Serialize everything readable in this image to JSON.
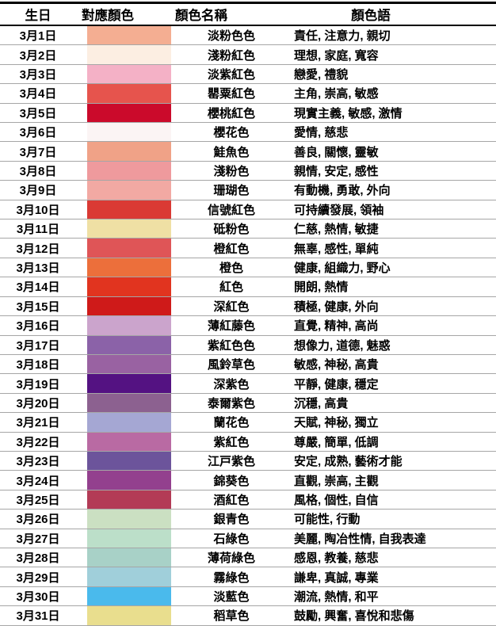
{
  "table": {
    "headers": [
      "生日",
      "對應顏色",
      "顏色名稱",
      "顏色語"
    ],
    "rows": [
      {
        "date": "3月1日",
        "swatch": "#F4AE92",
        "name": "淡粉色色",
        "meaning": "責任, 注意力, 親切"
      },
      {
        "date": "3月2日",
        "swatch": "#FCEEE2",
        "name": "淺粉紅色",
        "meaning": "理想, 家庭, 寬容"
      },
      {
        "date": "3月3日",
        "swatch": "#F4B1C6",
        "name": "淡紫紅色",
        "meaning": "戀愛, 禮貌"
      },
      {
        "date": "3月4日",
        "swatch": "#E6544D",
        "name": "罌粟紅色",
        "meaning": "主角, 崇高, 敏感"
      },
      {
        "date": "3月5日",
        "swatch": "#CB0A2B",
        "name": "櫻桃紅色",
        "meaning": "現實主義, 敏感, 激情"
      },
      {
        "date": "3月6日",
        "swatch": "#FBF4F4",
        "name": "櫻花色",
        "meaning": "愛情, 慈悲"
      },
      {
        "date": "3月7日",
        "swatch": "#F0A287",
        "name": "鮭魚色",
        "meaning": "善良, 關懷, 靈敏"
      },
      {
        "date": "3月8日",
        "swatch": "#EF9A9D",
        "name": "淺粉色",
        "meaning": "親情, 安定, 感性"
      },
      {
        "date": "3月9日",
        "swatch": "#F2A9A3",
        "name": "珊瑚色",
        "meaning": "有動機, 勇敢, 外向"
      },
      {
        "date": "3月10日",
        "swatch": "#DA3A34",
        "name": "信號紅色",
        "meaning": "可持續發展, 領袖"
      },
      {
        "date": "3月11日",
        "swatch": "#EFE0A4",
        "name": "砥粉色",
        "meaning": "仁慈, 熱情, 敏捷"
      },
      {
        "date": "3月12日",
        "swatch": "#DF5557",
        "name": "橙紅色",
        "meaning": "無辜, 感性, 單純"
      },
      {
        "date": "3月13日",
        "swatch": "#EC6F3B",
        "name": "橙色",
        "meaning": "健康, 組織力, 野心"
      },
      {
        "date": "3月14日",
        "swatch": "#E1341F",
        "name": "紅色",
        "meaning": "開朗, 熱情"
      },
      {
        "date": "3月15日",
        "swatch": "#CF1A19",
        "name": "深紅色",
        "meaning": "積極, 健康, 外向"
      },
      {
        "date": "3月16日",
        "swatch": "#CBA4CC",
        "name": "薄紅藤色",
        "meaning": "直覺, 精神, 高尚"
      },
      {
        "date": "3月17日",
        "swatch": "#8B62A8",
        "name": "紫紅色色",
        "meaning": "想像力, 道德, 魅惑"
      },
      {
        "date": "3月18日",
        "swatch": "#9962A2",
        "name": "風鈴草色",
        "meaning": "敏感, 神秘, 高貴"
      },
      {
        "date": "3月19日",
        "swatch": "#541282",
        "name": "深紫色",
        "meaning": "平靜, 健康, 穩定"
      },
      {
        "date": "3月20日",
        "swatch": "#8C6190",
        "name": "泰爾紫色",
        "meaning": "沉穩, 高貴"
      },
      {
        "date": "3月21日",
        "swatch": "#A5A7D3",
        "name": "蘭花色",
        "meaning": "天賦, 神秘, 獨立"
      },
      {
        "date": "3月22日",
        "swatch": "#B96AA3",
        "name": "紫紅色",
        "meaning": "尊嚴, 簡單, 低調"
      },
      {
        "date": "3月23日",
        "swatch": "#6C549B",
        "name": "江戸紫色",
        "meaning": "安定, 成熟, 藝術才能"
      },
      {
        "date": "3月24日",
        "swatch": "#93408E",
        "name": "錦葵色",
        "meaning": "直觀, 崇高, 主觀"
      },
      {
        "date": "3月25日",
        "swatch": "#B33B56",
        "name": "酒紅色",
        "meaning": "風格, 個性, 自信"
      },
      {
        "date": "3月26日",
        "swatch": "#CBE0C2",
        "name": "銀青色",
        "meaning": "可能性, 行動"
      },
      {
        "date": "3月27日",
        "swatch": "#BCDFC9",
        "name": "石綠色",
        "meaning": "美麗, 陶冶性情, 自我表達"
      },
      {
        "date": "3月28日",
        "swatch": "#A8D1C7",
        "name": "薄荷綠色",
        "meaning": "感恩, 教養, 慈悲"
      },
      {
        "date": "3月29日",
        "swatch": "#A0CFDA",
        "name": "霧綠色",
        "meaning": "謙卑, 真誠, 專業"
      },
      {
        "date": "3月30日",
        "swatch": "#4ABAEC",
        "name": "淡藍色",
        "meaning": "潮流, 熱情, 和平"
      },
      {
        "date": "3月31日",
        "swatch": "#E9DE8E",
        "name": "稻草色",
        "meaning": "鼓勵, 興奮, 喜悅和悲傷"
      }
    ]
  }
}
